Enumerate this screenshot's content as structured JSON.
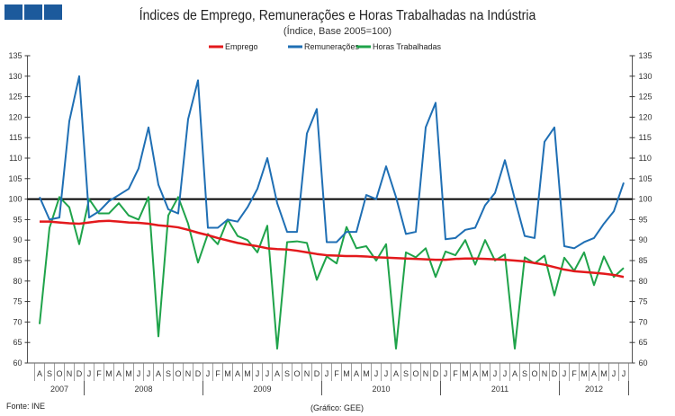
{
  "header": {
    "logo_icon": "three-blue-squares-logo"
  },
  "footer": {
    "source": "Fonte: INE",
    "credit": "(Gráfico: GEE)"
  },
  "chart_data": {
    "type": "line",
    "title": "Índices de Emprego, Remunerações e Horas Trabalhadas na Indústria",
    "subtitle": "(Índice, Base 2005=100)",
    "xlabel": "",
    "ylabel": "",
    "ylim": [
      60,
      135
    ],
    "yticks": [
      60,
      65,
      70,
      75,
      80,
      85,
      90,
      95,
      100,
      105,
      110,
      115,
      120,
      125,
      130,
      135
    ],
    "reference_line": 100,
    "legend_position": "top-center",
    "months": [
      "A",
      "S",
      "O",
      "N",
      "D",
      "J",
      "F",
      "M",
      "A",
      "M",
      "J",
      "J",
      "A",
      "S",
      "O",
      "N",
      "D",
      "J",
      "F",
      "M",
      "A",
      "M",
      "J",
      "J",
      "A",
      "S",
      "O",
      "N",
      "D",
      "J",
      "F",
      "M",
      "A",
      "M",
      "J",
      "J",
      "A",
      "S",
      "O",
      "N",
      "D",
      "J",
      "F",
      "M",
      "A",
      "M",
      "J",
      "J",
      "A",
      "S",
      "O",
      "N",
      "D",
      "J",
      "F",
      "M",
      "A",
      "M",
      "J",
      "J"
    ],
    "years": [
      {
        "label": "2007",
        "months": 5
      },
      {
        "label": "2008",
        "months": 12
      },
      {
        "label": "2009",
        "months": 12
      },
      {
        "label": "2010",
        "months": 12
      },
      {
        "label": "2011",
        "months": 12
      },
      {
        "label": "2012",
        "months": 7
      }
    ],
    "series": [
      {
        "name": "Emprego",
        "color": "#e3191c",
        "values": [
          94.5,
          94.5,
          94.3,
          94.1,
          94,
          94.3,
          94.6,
          94.7,
          94.5,
          94.3,
          94.2,
          94,
          93.6,
          93.4,
          93.1,
          92.5,
          91.8,
          91.2,
          90.5,
          89.9,
          89.3,
          88.9,
          88.5,
          88,
          87.8,
          87.7,
          87.4,
          87,
          86.6,
          86.3,
          86.2,
          86.1,
          86.1,
          86,
          85.8,
          85.7,
          85.6,
          85.5,
          85.4,
          85.3,
          85.2,
          85.2,
          85.4,
          85.5,
          85.5,
          85.4,
          85.3,
          85.2,
          85,
          84.8,
          84.4,
          84,
          83.4,
          82.8,
          82.4,
          82.2,
          82,
          81.8,
          81.5,
          81
        ]
      },
      {
        "name": "Remunerações",
        "color": "#1f6fb4",
        "values": [
          100.5,
          95,
          95.5,
          119,
          130,
          95.5,
          97,
          99.5,
          101,
          102.5,
          107.5,
          117.5,
          103.5,
          97.5,
          96.5,
          119.5,
          129,
          93,
          93,
          95,
          94.5,
          98,
          102.5,
          110,
          99,
          92,
          92,
          116,
          122,
          89.5,
          89.5,
          92,
          92,
          101,
          100,
          108,
          100.5,
          91.5,
          92,
          117.5,
          123.5,
          90.2,
          90.5,
          92.5,
          93,
          98.5,
          101.5,
          109.5,
          100,
          91,
          90.5,
          114,
          117.5,
          88.5,
          88,
          89.5,
          90.5,
          94,
          97,
          104
        ]
      },
      {
        "name": "Horas Trabalhadas",
        "color": "#1fa34a",
        "values": [
          69.5,
          93,
          100.5,
          98,
          89,
          100,
          96.5,
          96.5,
          99,
          96,
          95,
          100.5,
          66.5,
          96,
          100.5,
          94,
          84.5,
          91.5,
          89,
          95,
          91,
          90,
          87,
          93.5,
          63.5,
          89.5,
          89.7,
          89.3,
          80.3,
          86,
          84.3,
          93.2,
          88,
          88.5,
          85,
          89,
          63.5,
          87,
          85.8,
          88,
          81,
          87.2,
          86.3,
          90,
          84,
          90,
          85,
          86.5,
          63.5,
          85.8,
          84.3,
          86.2,
          76.5,
          85.7,
          82.5,
          87,
          79,
          86,
          81,
          83.2
        ]
      }
    ]
  }
}
